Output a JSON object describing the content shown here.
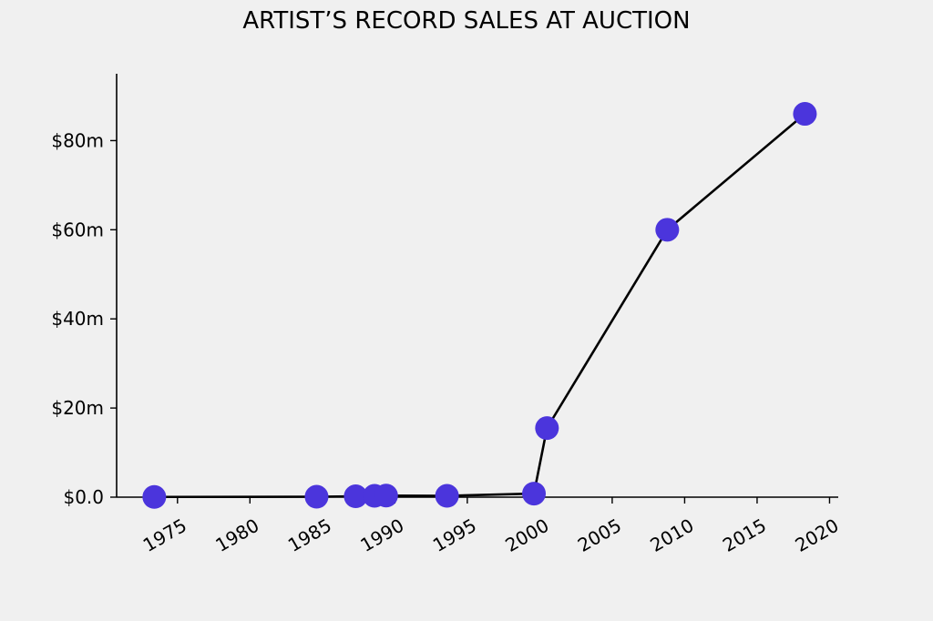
{
  "chart_data": {
    "type": "line",
    "title": "ARTIST’S RECORD SALES AT AUCTION",
    "xlabel": "",
    "ylabel": "",
    "x_ticks": [
      1975,
      1980,
      1985,
      1990,
      1995,
      2000,
      2005,
      2010,
      2015,
      2020
    ],
    "y_ticks": [
      0,
      20,
      40,
      60,
      80
    ],
    "y_tick_labels": [
      "$0.0",
      "$20m",
      "$40m",
      "$60m",
      "$80m"
    ],
    "xlim": [
      1970.8,
      2020.6
    ],
    "ylim": [
      0,
      95
    ],
    "grid": false,
    "series": [
      {
        "name": "",
        "x": [
          1973.4,
          1984.6,
          1987.3,
          1988.6,
          1989.4,
          1993.6,
          1999.6,
          2000.5,
          2008.8,
          2018.3
        ],
        "y": [
          0.05,
          0.1,
          0.2,
          0.3,
          0.35,
          0.3,
          0.8,
          15.5,
          60.0,
          86.0
        ]
      }
    ],
    "colors": {
      "marker": "#4b35dc",
      "line": "#000000",
      "background": "#f0f0f0"
    }
  }
}
